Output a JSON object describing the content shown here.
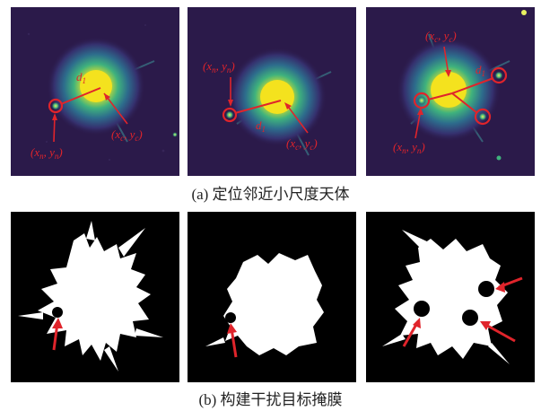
{
  "figure": {
    "caption_a": "(a) 定位邻近小尺度天体",
    "caption_b": "(b) 构建干扰目标掩膜"
  },
  "panel_a1": {
    "label_center": [
      "(x",
      "c",
      ", y",
      "c",
      ")"
    ],
    "label_neighbor": [
      "(x",
      "n",
      ", y",
      "n",
      ")"
    ],
    "distance_label": "d",
    "distance_sub": "1"
  },
  "panel_a2": {
    "label_center": [
      "(x",
      "c",
      ", y",
      "c",
      ")"
    ],
    "label_neighbor": [
      "(x",
      "n",
      ", y",
      "n",
      ")"
    ],
    "distance_label": "d",
    "distance_sub": "1"
  },
  "panel_a3": {
    "label_center": [
      "(x",
      "c",
      ", y",
      "c",
      ")"
    ],
    "label_neighbor": [
      "(x",
      "n",
      ", y",
      "n",
      ")"
    ],
    "distance_label": "d",
    "distance_sub": "1"
  },
  "colors": {
    "annotation": "#e0242b",
    "background_a": "#2b1a4a",
    "core": "#f4e21e",
    "halo": "#2aa28a",
    "mask_bg": "#000000",
    "mask_fg": "#ffffff"
  }
}
